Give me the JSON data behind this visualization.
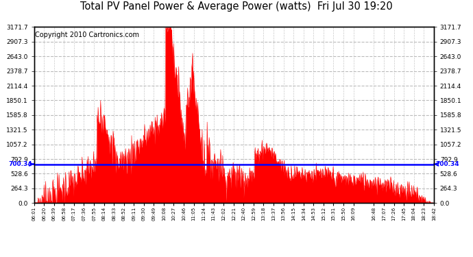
{
  "title": "Total PV Panel Power & Average Power (watts)  Fri Jul 30 19:20",
  "copyright": "Copyright 2010 Cartronics.com",
  "avg_power": 700.34,
  "y_max": 3171.7,
  "y_ticks": [
    0.0,
    264.3,
    528.6,
    792.9,
    1057.2,
    1321.5,
    1585.8,
    1850.1,
    2114.4,
    2378.7,
    2643.0,
    2907.3,
    3171.7
  ],
  "x_labels": [
    "06:01",
    "06:20",
    "06:39",
    "06:58",
    "07:17",
    "07:36",
    "07:55",
    "08:14",
    "08:33",
    "08:52",
    "09:11",
    "09:30",
    "09:49",
    "10:08",
    "10:27",
    "10:46",
    "11:05",
    "11:24",
    "11:43",
    "12:02",
    "12:21",
    "12:40",
    "12:59",
    "13:18",
    "13:37",
    "13:56",
    "14:15",
    "14:34",
    "14:53",
    "15:12",
    "15:31",
    "15:50",
    "16:09",
    "16:48",
    "17:07",
    "17:26",
    "17:45",
    "18:04",
    "18:23",
    "18:42"
  ],
  "fill_color": "#ff0000",
  "avg_line_color": "#0000ff",
  "grid_color": "#bbbbbb",
  "background_color": "#ffffff",
  "title_fontsize": 10.5,
  "copyright_fontsize": 7
}
